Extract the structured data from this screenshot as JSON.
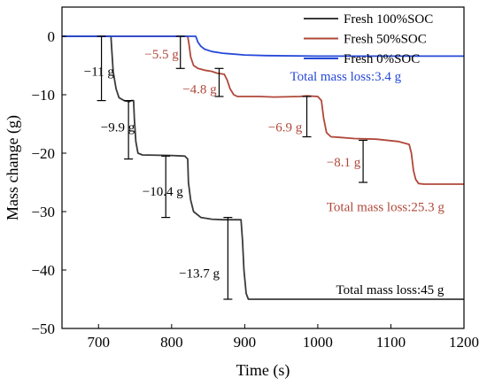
{
  "chart_data": {
    "type": "line",
    "title": "",
    "xlabel": "Time (s)",
    "ylabel": "Mass change (g)",
    "xlim": [
      650,
      1200
    ],
    "ylim": [
      -50,
      5
    ],
    "xticks": [
      700,
      800,
      900,
      1000,
      1100,
      1200
    ],
    "yticks": [
      0,
      -10,
      -20,
      -30,
      -40,
      -50
    ],
    "legend_position": "top-right",
    "series": [
      {
        "name": "Fresh 100%SOC",
        "color": "#3a3a3a",
        "x": [
          650,
          712,
          717,
          718,
          720,
          724,
          728,
          735,
          742,
          745,
          748,
          749,
          751,
          754,
          760,
          800,
          818,
          822,
          823,
          826,
          830,
          840,
          855,
          870,
          878,
          895,
          897,
          899,
          902,
          905,
          1200
        ],
        "y": [
          0,
          0,
          0,
          -2,
          -6,
          -9,
          -10.5,
          -11,
          -11.2,
          -11,
          -11,
          -14,
          -18,
          -20,
          -20.3,
          -20.4,
          -20.5,
          -21,
          -25,
          -28,
          -30,
          -31,
          -31.3,
          -31.4,
          -31.4,
          -31.4,
          -35,
          -40,
          -44,
          -45,
          -45
        ]
      },
      {
        "name": "Fresh 50%SOC",
        "color": "#b0473a",
        "x": [
          650,
          822,
          824,
          826,
          830,
          836,
          845,
          855,
          862,
          872,
          876,
          880,
          885,
          890,
          920,
          940,
          975,
          985,
          1000,
          1005,
          1008,
          1012,
          1018,
          1030,
          1050,
          1080,
          1110,
          1125,
          1128,
          1131,
          1134,
          1138,
          1145,
          1200
        ],
        "y": [
          0,
          0,
          -1.5,
          -3.5,
          -5,
          -5.5,
          -5.8,
          -6,
          -6.3,
          -6.5,
          -7.5,
          -9,
          -10,
          -10.3,
          -10.3,
          -10.4,
          -10.3,
          -10.2,
          -10.3,
          -11,
          -14,
          -16.5,
          -17.2,
          -17.3,
          -17.5,
          -17.6,
          -18,
          -18.5,
          -20,
          -23,
          -24.5,
          -25.2,
          -25.3,
          -25.3
        ]
      },
      {
        "name": "Fresh 0%SOC",
        "color": "#2549d8",
        "x": [
          650,
          833,
          836,
          840,
          845,
          855,
          870,
          900,
          930,
          1000,
          1100,
          1200
        ],
        "y": [
          0,
          0,
          -1,
          -1.7,
          -2.2,
          -2.6,
          -2.9,
          -3.2,
          -3.3,
          -3.4,
          -3.4,
          -3.4
        ]
      }
    ],
    "annotations": [
      {
        "text": "−11 g",
        "color": "#000000",
        "x": 680,
        "y": -6,
        "bar_x": 704,
        "bar_y": [
          0,
          -11
        ]
      },
      {
        "text": "−9.9 g",
        "color": "#000000",
        "x": 703,
        "y": -15.5,
        "bar_x": 741,
        "bar_y": [
          -11,
          -21
        ]
      },
      {
        "text": "−10.4 g",
        "color": "#000000",
        "x": 760,
        "y": -26.5,
        "bar_x": 792,
        "bar_y": [
          -20.5,
          -31
        ]
      },
      {
        "text": "−13.7 g",
        "color": "#000000",
        "x": 810,
        "y": -40.5,
        "bar_x": 877,
        "bar_y": [
          -31,
          -45
        ]
      },
      {
        "text": "−5.5 g",
        "color": "#b0473a",
        "x": 763,
        "y": -3,
        "bar_x": 812,
        "bar_y": [
          0,
          -5.5
        ]
      },
      {
        "text": "−4.8 g",
        "color": "#b0473a",
        "x": 815,
        "y": -9,
        "bar_x": 865,
        "bar_y": [
          -5.5,
          -10.3
        ]
      },
      {
        "text": "−6.9 g",
        "color": "#b0473a",
        "x": 932,
        "y": -15.5,
        "bar_x": 985,
        "bar_y": [
          -10.3,
          -17.2
        ]
      },
      {
        "text": "−8.1 g",
        "color": "#b0473a",
        "x": 1012,
        "y": -21.5,
        "bar_x": 1062,
        "bar_y": [
          -17.8,
          -25
        ]
      },
      {
        "text": "Total mass loss:3.4 g",
        "color": "#2549d8",
        "x": 962,
        "y": -6.8,
        "bar_x": null,
        "bar_y": null
      },
      {
        "text": "Total mass loss:25.3 g",
        "color": "#b0473a",
        "x": 1012,
        "y": -29.2,
        "bar_x": null,
        "bar_y": null
      },
      {
        "text": "Total mass loss:45 g",
        "color": "#000000",
        "x": 1025,
        "y": -43.3,
        "bar_x": null,
        "bar_y": null
      }
    ]
  }
}
